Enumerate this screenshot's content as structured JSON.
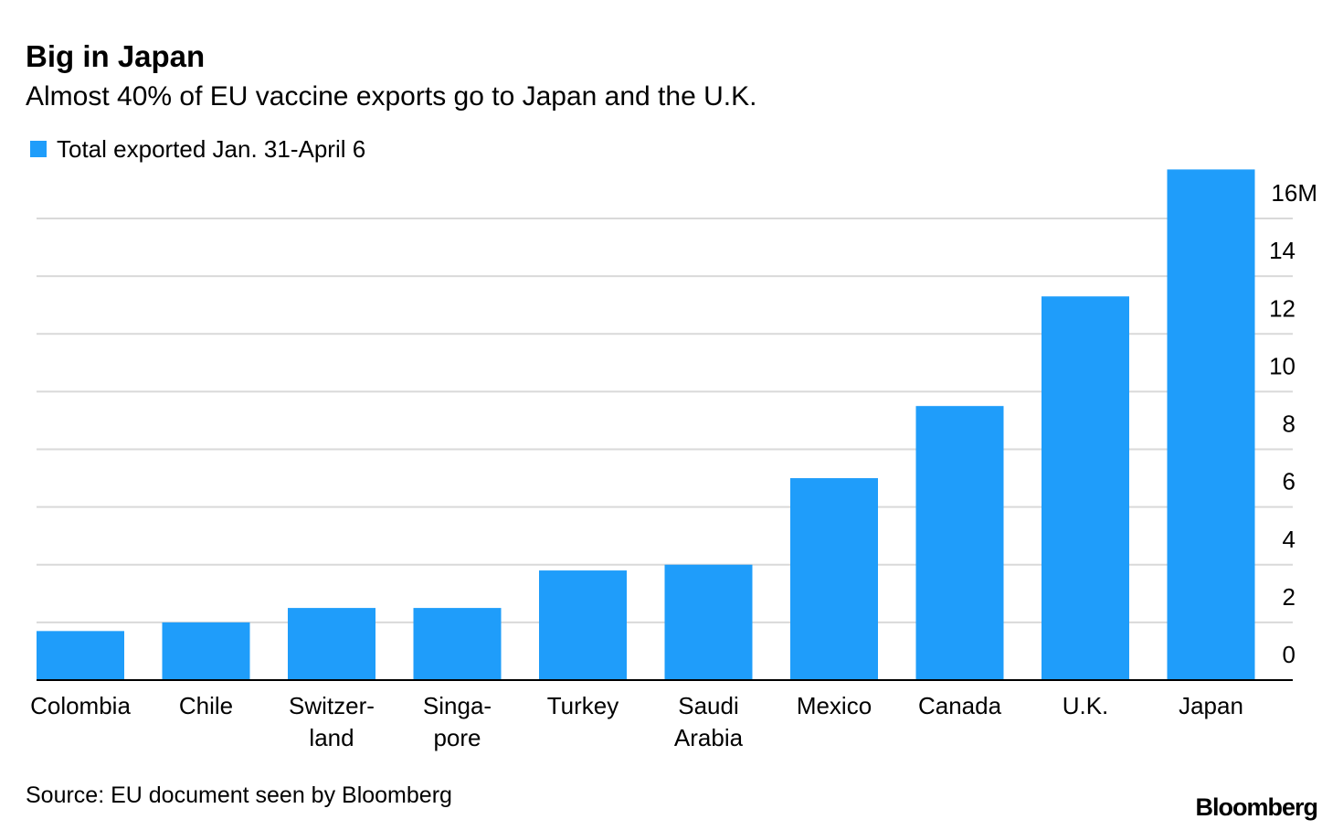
{
  "chart_data": {
    "type": "bar",
    "title": "Big in Japan",
    "subtitle": "Almost 40% of EU vaccine exports go to Japan and the U.K.",
    "categories": [
      "Colombia",
      "Chile",
      "Switzer-\nland",
      "Singa-\npore",
      "Turkey",
      "Saudi\nArabia",
      "Mexico",
      "Canada",
      "U.K.",
      "Japan"
    ],
    "series": [
      {
        "name": "Total exported Jan. 31-April 6",
        "color": "#1f9dfa",
        "values": [
          1.7,
          2.0,
          2.5,
          2.5,
          3.8,
          4.0,
          7.0,
          9.5,
          13.3,
          17.7
        ]
      }
    ],
    "ylim": [
      0,
      18
    ],
    "yticks": [
      0,
      2,
      4,
      6,
      8,
      10,
      12,
      14,
      {
        "value": 16,
        "label": "16M"
      }
    ],
    "grid": true,
    "source": "Source: EU document seen by Bloomberg",
    "brand": "Bloomberg"
  }
}
